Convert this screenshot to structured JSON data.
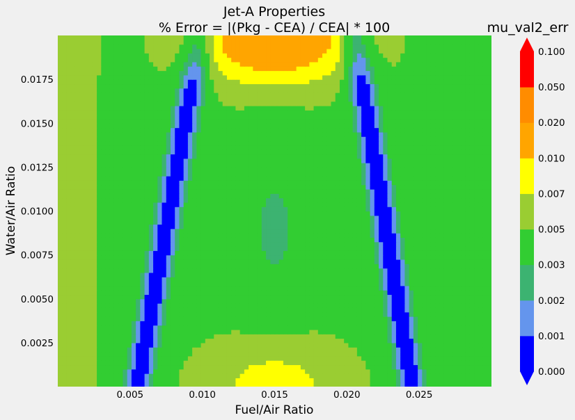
{
  "chart_data": {
    "type": "heatmap",
    "title": "Jet-A Properties",
    "subtitle": "% Error = |(Pkg - CEA) / CEA| * 100",
    "xlabel": "Fuel/Air Ratio",
    "ylabel": "Water/Air Ratio",
    "xlim": [
      0.0,
      0.03
    ],
    "ylim": [
      0.0,
      0.02
    ],
    "x_ticks": [
      "0.005",
      "0.010",
      "0.015",
      "0.020",
      "0.025"
    ],
    "y_ticks": [
      "0.0025",
      "0.0050",
      "0.0075",
      "0.0100",
      "0.0125",
      "0.0150",
      "0.0175"
    ],
    "colorbar": {
      "title": "mu_val2_err",
      "levels": [
        "0.000",
        "0.001",
        "0.002",
        "0.003",
        "0.005",
        "0.007",
        "0.010",
        "0.020",
        "0.050",
        "0.100"
      ],
      "colors": [
        "#0000ff",
        "#6495ed",
        "#3cb371",
        "#32cd32",
        "#9acd32",
        "#ffff00",
        "#ffa500",
        "#ff8c00",
        "#ff0000"
      ],
      "extend": "both",
      "under_color": "#0000ff",
      "over_color": "#ff0000"
    },
    "grid": false
  }
}
